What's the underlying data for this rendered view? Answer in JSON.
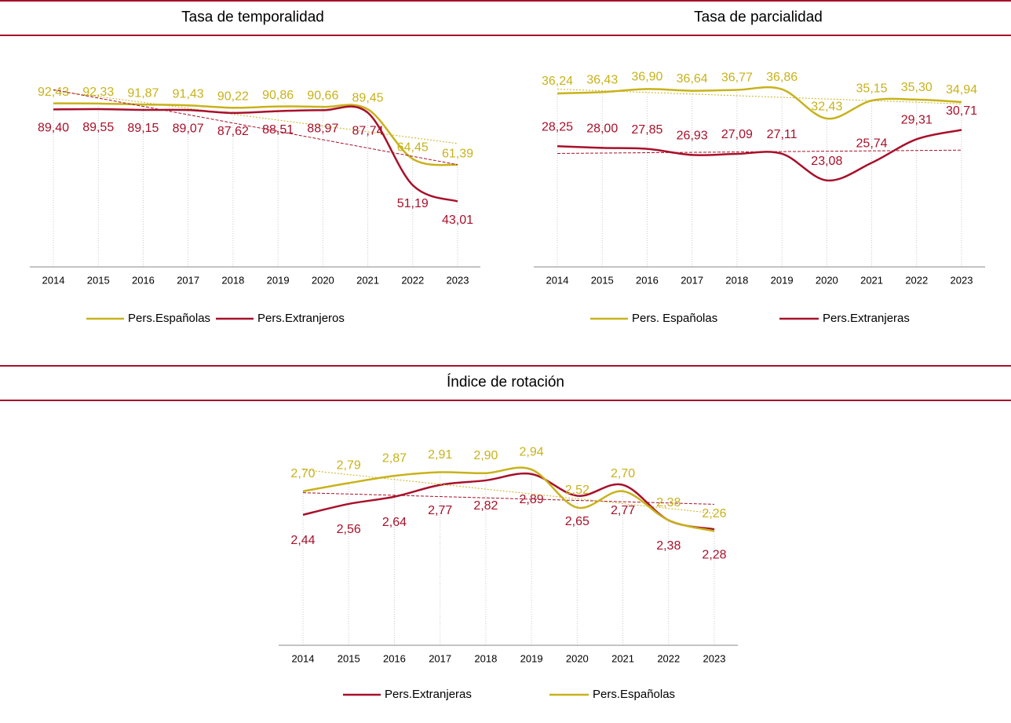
{
  "chart_data": [
    {
      "type": "line",
      "title": "Tasa de temporalidad",
      "categories": [
        "2014",
        "2015",
        "2016",
        "2017",
        "2018",
        "2019",
        "2020",
        "2021",
        "2022",
        "2023"
      ],
      "ylim": [
        10,
        120
      ],
      "series": [
        {
          "name": "Pers.Españolas",
          "color": "#c8b21a",
          "values": [
            92.43,
            92.33,
            91.87,
            91.43,
            90.22,
            90.86,
            90.66,
            89.45,
            64.45,
            61.39
          ],
          "value_labels": [
            "92,43",
            "92,33",
            "91,87",
            "91,43",
            "90,22",
            "90,86",
            "90,66",
            "89,45",
            "64,45",
            "61,39"
          ]
        },
        {
          "name": "Pers.Extranjeros",
          "color": "#a8102a",
          "values": [
            89.4,
            89.55,
            89.15,
            89.07,
            87.62,
            88.51,
            88.97,
            87.74,
            51.19,
            43.01
          ],
          "value_labels": [
            "89,40",
            "89,55",
            "89,15",
            "89,07",
            "87,62",
            "88,51",
            "88,97",
            "87,74",
            "51,19",
            "43,01"
          ]
        }
      ]
    },
    {
      "type": "line",
      "title": "Tasa de parcialidad",
      "categories": [
        "2014",
        "2015",
        "2016",
        "2017",
        "2018",
        "2019",
        "2020",
        "2021",
        "2022",
        "2023"
      ],
      "ylim": [
        10,
        43
      ],
      "series": [
        {
          "name": "Pers. Españolas",
          "color": "#c8b21a",
          "values": [
            36.24,
            36.43,
            36.9,
            36.64,
            36.77,
            36.86,
            32.43,
            35.15,
            35.3,
            34.94
          ],
          "value_labels": [
            "36,24",
            "36,43",
            "36,90",
            "36,64",
            "36,77",
            "36,86",
            "32,43",
            "35,15",
            "35,30",
            "34,94"
          ]
        },
        {
          "name": "Pers.Extranjeras",
          "color": "#a8102a",
          "values": [
            28.25,
            28.0,
            27.85,
            26.93,
            27.09,
            27.11,
            23.08,
            25.74,
            29.31,
            30.71
          ],
          "value_labels": [
            "28,25",
            "28,00",
            "27,85",
            "26,93",
            "27,09",
            "27,11",
            "23,08",
            "25,74",
            "29,31",
            "30,71"
          ]
        }
      ]
    },
    {
      "type": "line",
      "title": "Índice de rotación",
      "categories": [
        "2014",
        "2015",
        "2016",
        "2017",
        "2018",
        "2019",
        "2020",
        "2021",
        "2022",
        "2023"
      ],
      "ylim": [
        1,
        3.4
      ],
      "series": [
        {
          "name": "Pers.Extranjeras",
          "color": "#a8102a",
          "values": [
            2.44,
            2.56,
            2.64,
            2.77,
            2.82,
            2.89,
            2.65,
            2.77,
            2.38,
            2.28
          ],
          "value_labels": [
            "2,44",
            "2,56",
            "2,64",
            "2,77",
            "2,82",
            "2,89",
            "2,65",
            "2,77",
            "2,38",
            "2,28"
          ]
        },
        {
          "name": "Pers.Españolas",
          "color": "#c8b21a",
          "values": [
            2.7,
            2.79,
            2.87,
            2.91,
            2.9,
            2.94,
            2.52,
            2.7,
            2.38,
            2.26
          ],
          "value_labels": [
            "2,70",
            "2,79",
            "2,87",
            "2,91",
            "2,90",
            "2,94",
            "2,52",
            "2,70",
            "2,38",
            "2,26"
          ]
        }
      ]
    }
  ]
}
